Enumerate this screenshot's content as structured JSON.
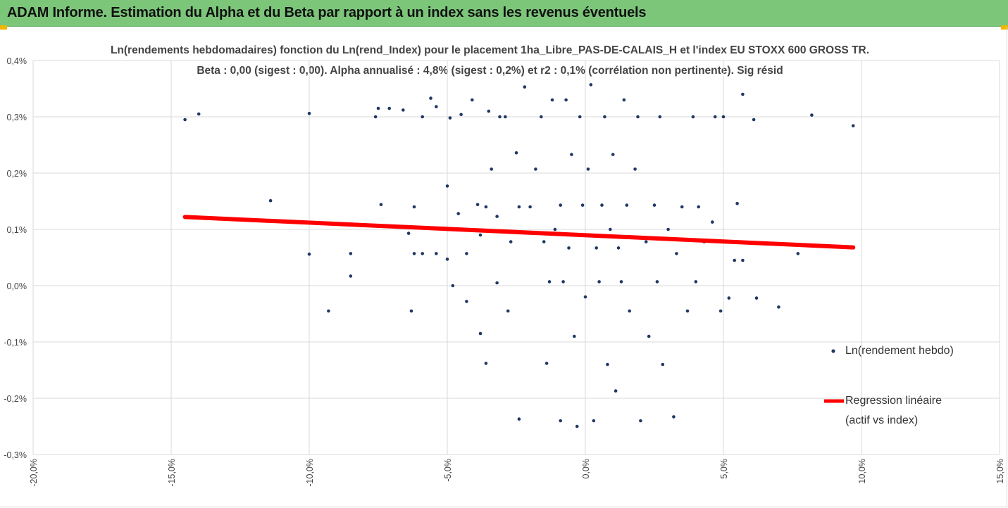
{
  "header": {
    "title": "ADAM Informe. Estimation du Alpha et du Beta par rapport à un index sans les revenus éventuels"
  },
  "colors": {
    "header_bg": "#7cc67a",
    "accent_corner": "#f2b500",
    "point": "#1f3864",
    "regression": "#ff0000",
    "grid": "#d9d9d9"
  },
  "chart_data": {
    "type": "scatter",
    "title": "Ln(rendements hebdomadaires) fonction du Ln(rend_Index) pour le placement 1ha_Libre_PAS-DE-CALAIS_H et l'index EU STOXX 600 GROSS TR.",
    "subtitle": "Beta : 0,00 (sigest : 0,00). Alpha annualisé : 4,8% (sigest : 0,2%) et r2 : 0,1% (corrélation non pertinente). Sig résid",
    "xlabel": "",
    "ylabel": "",
    "xlim": [
      -20,
      15
    ],
    "ylim": [
      -0.3,
      0.4
    ],
    "x_ticks": [
      "-20,0%",
      "-15,0%",
      "-10,0%",
      "-5,0%",
      "0,0%",
      "5,0%",
      "10,0%",
      "15,0%"
    ],
    "y_ticks": [
      "0,4%",
      "0,3%",
      "0,2%",
      "0,1%",
      "0,0%",
      "-0,1%",
      "-0,2%",
      "-0,3%"
    ],
    "grid": true,
    "legend_position": "right",
    "series": [
      {
        "name": "Ln(rendement hebdo)",
        "type": "scatter",
        "points": [
          [
            -14.5,
            0.295
          ],
          [
            -14.0,
            0.305
          ],
          [
            -10.0,
            0.306
          ],
          [
            -11.4,
            0.151
          ],
          [
            -10.0,
            0.056
          ],
          [
            -9.3,
            -0.045
          ],
          [
            -8.5,
            0.057
          ],
          [
            -8.5,
            0.017
          ],
          [
            -7.5,
            0.315
          ],
          [
            -7.6,
            0.3
          ],
          [
            -7.4,
            0.144
          ],
          [
            -7.1,
            0.315
          ],
          [
            -6.6,
            0.312
          ],
          [
            -6.4,
            0.093
          ],
          [
            -6.2,
            0.14
          ],
          [
            -6.2,
            0.057
          ],
          [
            -6.3,
            -0.045
          ],
          [
            -5.9,
            0.057
          ],
          [
            -5.9,
            0.3
          ],
          [
            -5.6,
            0.333
          ],
          [
            -5.4,
            0.318
          ],
          [
            -5.4,
            0.057
          ],
          [
            -5.0,
            0.177
          ],
          [
            -5.0,
            0.047
          ],
          [
            -4.9,
            0.298
          ],
          [
            -4.8,
            0.0
          ],
          [
            -4.6,
            0.128
          ],
          [
            -4.5,
            0.304
          ],
          [
            -4.3,
            0.057
          ],
          [
            -4.3,
            -0.028
          ],
          [
            -4.1,
            0.33
          ],
          [
            -3.9,
            0.144
          ],
          [
            -3.8,
            0.09
          ],
          [
            -3.8,
            -0.085
          ],
          [
            -3.6,
            0.14
          ],
          [
            -3.6,
            -0.138
          ],
          [
            -3.5,
            0.31
          ],
          [
            -3.4,
            0.207
          ],
          [
            -3.2,
            0.005
          ],
          [
            -3.2,
            0.123
          ],
          [
            -3.1,
            0.3
          ],
          [
            -2.9,
            0.3
          ],
          [
            -2.8,
            -0.045
          ],
          [
            -2.7,
            0.078
          ],
          [
            -2.5,
            0.236
          ],
          [
            -2.4,
            0.14
          ],
          [
            -2.4,
            -0.237
          ],
          [
            -2.2,
            0.353
          ],
          [
            -2.0,
            0.14
          ],
          [
            -1.8,
            0.207
          ],
          [
            -1.6,
            0.3
          ],
          [
            -1.5,
            0.078
          ],
          [
            -1.4,
            -0.138
          ],
          [
            -1.3,
            0.007
          ],
          [
            -1.2,
            0.33
          ],
          [
            -1.1,
            0.1
          ],
          [
            -0.9,
            0.143
          ],
          [
            -0.9,
            -0.24
          ],
          [
            -0.8,
            0.007
          ],
          [
            -0.7,
            0.33
          ],
          [
            -0.6,
            0.067
          ],
          [
            -0.5,
            0.233
          ],
          [
            -0.4,
            -0.09
          ],
          [
            -0.3,
            -0.25
          ],
          [
            -0.2,
            0.3
          ],
          [
            -0.1,
            0.143
          ],
          [
            0.0,
            -0.02
          ],
          [
            0.1,
            0.207
          ],
          [
            0.2,
            0.357
          ],
          [
            0.3,
            -0.24
          ],
          [
            0.4,
            0.067
          ],
          [
            0.5,
            0.007
          ],
          [
            0.6,
            0.143
          ],
          [
            0.7,
            0.3
          ],
          [
            0.8,
            -0.14
          ],
          [
            0.9,
            0.1
          ],
          [
            1.0,
            0.233
          ],
          [
            1.1,
            -0.187
          ],
          [
            1.2,
            0.067
          ],
          [
            1.3,
            0.007
          ],
          [
            1.4,
            0.33
          ],
          [
            1.5,
            0.143
          ],
          [
            1.6,
            -0.045
          ],
          [
            1.8,
            0.207
          ],
          [
            1.9,
            0.3
          ],
          [
            2.0,
            -0.24
          ],
          [
            2.2,
            0.078
          ],
          [
            2.3,
            -0.09
          ],
          [
            2.5,
            0.143
          ],
          [
            2.6,
            0.007
          ],
          [
            2.7,
            0.3
          ],
          [
            2.8,
            -0.14
          ],
          [
            3.0,
            0.1
          ],
          [
            3.2,
            -0.233
          ],
          [
            3.3,
            0.057
          ],
          [
            3.5,
            0.14
          ],
          [
            3.7,
            -0.045
          ],
          [
            3.9,
            0.3
          ],
          [
            4.0,
            0.007
          ],
          [
            4.1,
            0.14
          ],
          [
            4.3,
            0.078
          ],
          [
            4.6,
            0.113
          ],
          [
            4.7,
            0.3
          ],
          [
            4.9,
            -0.045
          ],
          [
            5.0,
            0.3
          ],
          [
            5.2,
            -0.022
          ],
          [
            5.4,
            0.045
          ],
          [
            5.5,
            0.146
          ],
          [
            5.7,
            0.045
          ],
          [
            5.7,
            0.34
          ],
          [
            6.1,
            0.295
          ],
          [
            6.2,
            -0.022
          ],
          [
            7.0,
            -0.038
          ],
          [
            7.7,
            0.057
          ],
          [
            8.2,
            0.303
          ],
          [
            9.7,
            0.284
          ]
        ]
      },
      {
        "name": "Regression linéaire\n(actif vs index)",
        "type": "line",
        "points": [
          [
            -14.5,
            0.122
          ],
          [
            9.7,
            0.068
          ]
        ]
      }
    ]
  },
  "legend": {
    "items": [
      {
        "label": "Ln(rendement hebdo)"
      },
      {
        "label_line1": "Regression linéaire",
        "label_line2": "(actif vs index)"
      }
    ]
  }
}
